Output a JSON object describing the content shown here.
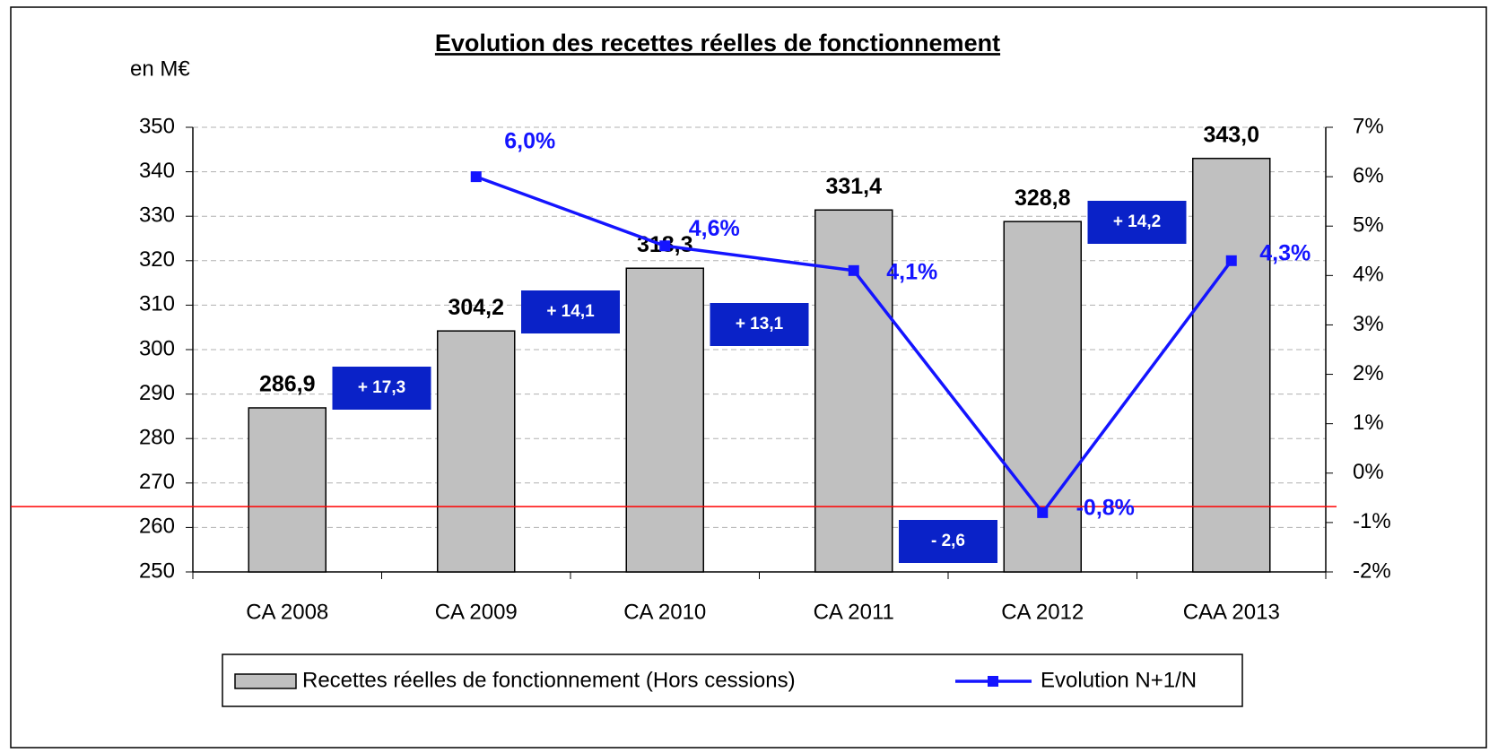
{
  "chart_data": {
    "type": "bar",
    "title": "Evolution des recettes réelles de fonctionnement",
    "y_axis_label": "en M€",
    "categories": [
      "CA 2008",
      "CA 2009",
      "CA 2010",
      "CA 2011",
      "CA 2012",
      "CAA 2013"
    ],
    "series": [
      {
        "name": "Recettes réelles de fonctionnement (Hors cessions)",
        "type": "bar",
        "color": "#c0c0c0",
        "values": [
          286.9,
          304.2,
          318.3,
          331.4,
          328.8,
          343.0
        ],
        "value_labels": [
          "286,9",
          "304,2",
          "318,3",
          "331,4",
          "328,8",
          "343,0"
        ]
      },
      {
        "name": "Evolution N+1/N",
        "type": "line",
        "axis": "y2",
        "color": "#1414ff",
        "values": [
          null,
          6.0,
          4.6,
          4.1,
          -0.8,
          4.3
        ],
        "value_labels": [
          null,
          "6,0%",
          "4,6%",
          "4,1%",
          "-0,8%",
          "4,3%"
        ]
      }
    ],
    "annotations": [
      "+ 17,3",
      "+ 14,1",
      "+ 13,1",
      "- 2,6",
      "+ 14,2"
    ],
    "annotation_color": "#0a22c8",
    "reference_line": {
      "value": 264.7,
      "color": "#ff0000"
    },
    "ylim": [
      250,
      350
    ],
    "yticks": [
      250,
      260,
      270,
      280,
      290,
      300,
      310,
      320,
      330,
      340,
      350
    ],
    "y2lim": [
      -2,
      7
    ],
    "y2ticks": [
      {
        "value": -2,
        "label": "-2%"
      },
      {
        "value": -1,
        "label": "-1%"
      },
      {
        "value": 0,
        "label": "0%"
      },
      {
        "value": 1,
        "label": "1%"
      },
      {
        "value": 2,
        "label": "2%"
      },
      {
        "value": 3,
        "label": "3%"
      },
      {
        "value": 4,
        "label": "4%"
      },
      {
        "value": 5,
        "label": "5%"
      },
      {
        "value": 6,
        "label": "6%"
      },
      {
        "value": 7,
        "label": "7%"
      }
    ],
    "grid": true,
    "legend": "bottom"
  }
}
